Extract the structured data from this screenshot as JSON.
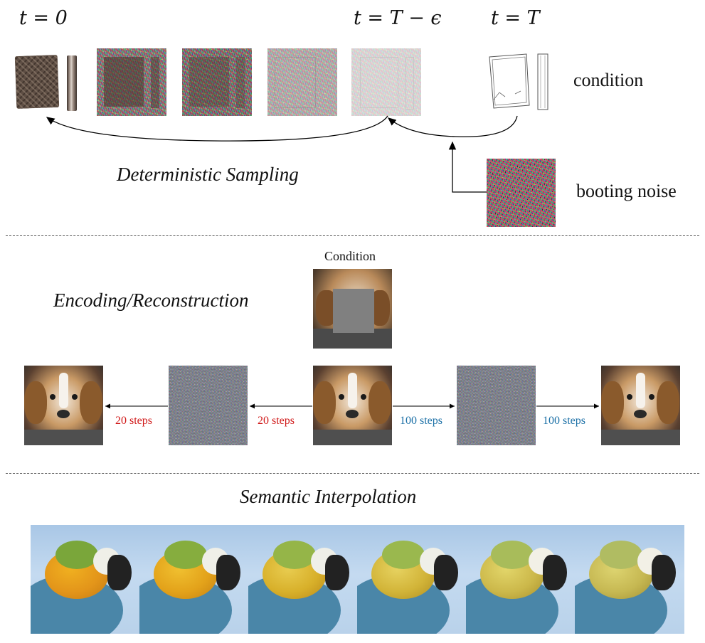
{
  "top": {
    "t0": "t = 0",
    "t_eps": "t = T − ϵ",
    "tT": "t = T",
    "condition": "condition",
    "booting_noise": "booting noise",
    "sampling_title": "Deterministic Sampling"
  },
  "middle": {
    "title": "Encoding/Reconstruction",
    "condition_label": "Condition",
    "steps_left_outer": "20 steps",
    "steps_left_inner": "20 steps",
    "steps_right_inner": "100 steps",
    "steps_right_outer": "100 steps"
  },
  "bottom": {
    "title": "Semantic Interpolation",
    "frames": [
      "",
      "",
      "",
      "",
      "",
      ""
    ]
  },
  "colors": {
    "red_steps": "#d01818",
    "blue_steps": "#1a6fa6",
    "divider": "#555555"
  },
  "icons": {
    "wallet": "wallet-photo",
    "sketch": "wallet-sketch",
    "noise": "noise-patch",
    "dog": "beagle-photo",
    "parrot": "macaw-photo"
  }
}
